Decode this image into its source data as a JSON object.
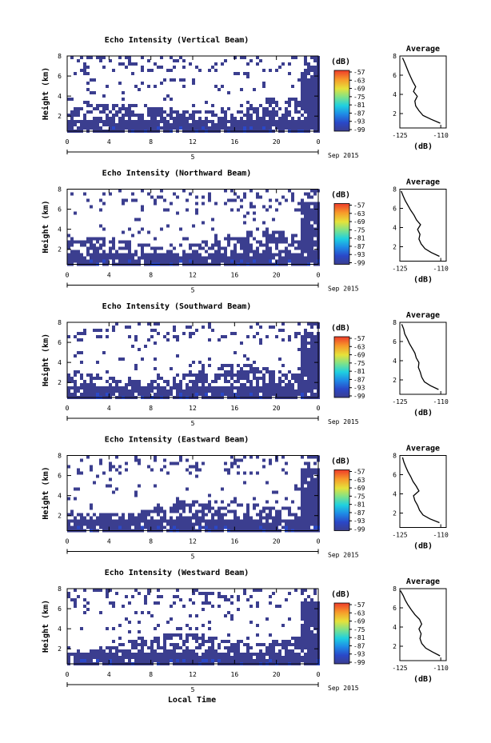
{
  "figure": {
    "x_axis_label": "Local Time",
    "date_label": "Sep 2015",
    "day_label": "5",
    "y_axis_label": "Height (km)",
    "colorbar_unit": "(dB)",
    "avg_title": "Average",
    "avg_xlabel": "(dB)"
  },
  "chart_data": [
    {
      "type": "heatmap",
      "title": "Echo Intensity (Vertical Beam)",
      "xlabel": "",
      "ylabel": "Height (km)",
      "xlim": [
        0,
        24
      ],
      "ylim": [
        0.5,
        8
      ],
      "x_ticks": [
        "0",
        "4",
        "8",
        "12",
        "16",
        "20",
        "0"
      ],
      "y_ticks": [
        "2",
        "4",
        "6",
        "8"
      ],
      "colorbar": {
        "label": "(dB)",
        "ticks": [
          "-57",
          "-63",
          "-69",
          "-75",
          "-81",
          "-87",
          "-93",
          "-99"
        ]
      },
      "average_profile": {
        "title": "Average",
        "xlabel": "(dB)",
        "xlim": [
          -125,
          -108
        ],
        "ylim": [
          0.5,
          8
        ],
        "x_ticks": [
          "-125",
          "-110"
        ],
        "y_ticks": [
          "2",
          "4",
          "6",
          "8"
        ],
        "x": [
          -110.2,
          -113.5,
          -116.5,
          -118.0,
          -119.2,
          -119.5,
          -118.6,
          -120.0,
          -119.2,
          -120.2,
          -121.0,
          -121.8,
          -122.5,
          -123.2,
          -124.0
        ],
        "y": [
          1.0,
          1.4,
          1.8,
          2.3,
          2.8,
          3.3,
          3.8,
          4.3,
          4.8,
          5.3,
          5.8,
          6.3,
          6.8,
          7.3,
          7.8
        ]
      }
    },
    {
      "type": "heatmap",
      "title": "Echo Intensity (Northward Beam)",
      "xlabel": "",
      "ylabel": "Height (km)",
      "xlim": [
        0,
        24
      ],
      "ylim": [
        0.5,
        8
      ],
      "x_ticks": [
        "0",
        "4",
        "8",
        "12",
        "16",
        "20",
        "0"
      ],
      "y_ticks": [
        "2",
        "4",
        "6",
        "8"
      ],
      "colorbar": {
        "label": "(dB)",
        "ticks": [
          "-57",
          "-63",
          "-69",
          "-75",
          "-81",
          "-87",
          "-93",
          "-99"
        ]
      },
      "average_profile": {
        "title": "Average",
        "xlabel": "(dB)",
        "xlim": [
          -125,
          -108
        ],
        "ylim": [
          0.5,
          8
        ],
        "x_ticks": [
          "-125",
          "-110"
        ],
        "y_ticks": [
          "2",
          "4",
          "6",
          "8"
        ],
        "x": [
          -110.5,
          -113.5,
          -115.8,
          -117.2,
          -118.0,
          -117.6,
          -118.5,
          -117.4,
          -118.9,
          -119.8,
          -121.0,
          -122.0,
          -123.0,
          -123.8,
          -124.5
        ],
        "y": [
          1.0,
          1.4,
          1.8,
          2.3,
          2.8,
          3.3,
          3.8,
          4.3,
          4.8,
          5.3,
          5.8,
          6.3,
          6.8,
          7.3,
          7.8
        ]
      }
    },
    {
      "type": "heatmap",
      "title": "Echo Intensity (Southward Beam)",
      "xlabel": "",
      "ylabel": "Height (km)",
      "xlim": [
        0,
        24
      ],
      "ylim": [
        0.5,
        8
      ],
      "x_ticks": [
        "0",
        "4",
        "8",
        "12",
        "16",
        "20",
        "0"
      ],
      "y_ticks": [
        "2",
        "4",
        "6",
        "8"
      ],
      "colorbar": {
        "label": "(dB)",
        "ticks": [
          "-57",
          "-63",
          "-69",
          "-75",
          "-81",
          "-87",
          "-93",
          "-99"
        ]
      },
      "average_profile": {
        "title": "Average",
        "xlabel": "(dB)",
        "xlim": [
          -125,
          -108
        ],
        "ylim": [
          0.5,
          8
        ],
        "x_ticks": [
          "-125",
          "-110"
        ],
        "y_ticks": [
          "2",
          "4",
          "6",
          "8"
        ],
        "x": [
          -110.8,
          -113.8,
          -116.0,
          -117.0,
          -117.5,
          -118.2,
          -118.0,
          -119.0,
          -119.5,
          -120.5,
          -121.5,
          -122.3,
          -123.2,
          -123.6,
          -124.3
        ],
        "y": [
          1.0,
          1.4,
          1.8,
          2.3,
          2.8,
          3.3,
          3.8,
          4.3,
          4.8,
          5.3,
          5.8,
          6.3,
          6.8,
          7.3,
          7.8
        ]
      }
    },
    {
      "type": "heatmap",
      "title": "Echo Intensity (Eastward Beam)",
      "xlabel": "",
      "ylabel": "Height (km)",
      "xlim": [
        0,
        24
      ],
      "ylim": [
        0.5,
        8
      ],
      "x_ticks": [
        "0",
        "4",
        "8",
        "12",
        "16",
        "20",
        "0"
      ],
      "y_ticks": [
        "2",
        "4",
        "6",
        "8"
      ],
      "colorbar": {
        "label": "(dB)",
        "ticks": [
          "-57",
          "-63",
          "-69",
          "-75",
          "-81",
          "-87",
          "-93",
          "-99"
        ]
      },
      "average_profile": {
        "title": "Average",
        "xlabel": "(dB)",
        "xlim": [
          -125,
          -108
        ],
        "ylim": [
          0.5,
          8
        ],
        "x_ticks": [
          "-125",
          "-110"
        ],
        "y_ticks": [
          "2",
          "4",
          "6",
          "8"
        ],
        "x": [
          -110.5,
          -114.0,
          -116.5,
          -117.8,
          -118.5,
          -119.5,
          -120.0,
          -118.0,
          -119.0,
          -120.2,
          -121.0,
          -122.0,
          -122.8,
          -123.5,
          -124.0
        ],
        "y": [
          1.0,
          1.4,
          1.8,
          2.3,
          2.8,
          3.3,
          3.8,
          4.3,
          4.8,
          5.3,
          5.8,
          6.3,
          6.8,
          7.3,
          7.8
        ]
      }
    },
    {
      "type": "heatmap",
      "title": "Echo Intensity (Westward Beam)",
      "xlabel": "Local Time",
      "ylabel": "Height (km)",
      "xlim": [
        0,
        24
      ],
      "ylim": [
        0.5,
        8
      ],
      "x_ticks": [
        "0",
        "4",
        "8",
        "12",
        "16",
        "20",
        "0"
      ],
      "y_ticks": [
        "2",
        "4",
        "6",
        "8"
      ],
      "colorbar": {
        "label": "(dB)",
        "ticks": [
          "-57",
          "-63",
          "-69",
          "-75",
          "-81",
          "-87",
          "-93",
          "-99"
        ]
      },
      "average_profile": {
        "title": "Average",
        "xlabel": "(dB)",
        "xlim": [
          -125,
          -108
        ],
        "ylim": [
          0.5,
          8
        ],
        "x_ticks": [
          "-125",
          "-110"
        ],
        "y_ticks": [
          "2",
          "4",
          "6",
          "8"
        ],
        "x": [
          -110.3,
          -113.0,
          -115.5,
          -117.0,
          -117.6,
          -117.2,
          -118.0,
          -117.0,
          -117.8,
          -119.5,
          -120.8,
          -122.0,
          -123.0,
          -123.8,
          -124.8
        ],
        "y": [
          1.0,
          1.4,
          1.8,
          2.3,
          2.8,
          3.3,
          3.8,
          4.3,
          4.8,
          5.3,
          5.8,
          6.3,
          6.8,
          7.3,
          7.8
        ]
      }
    }
  ]
}
